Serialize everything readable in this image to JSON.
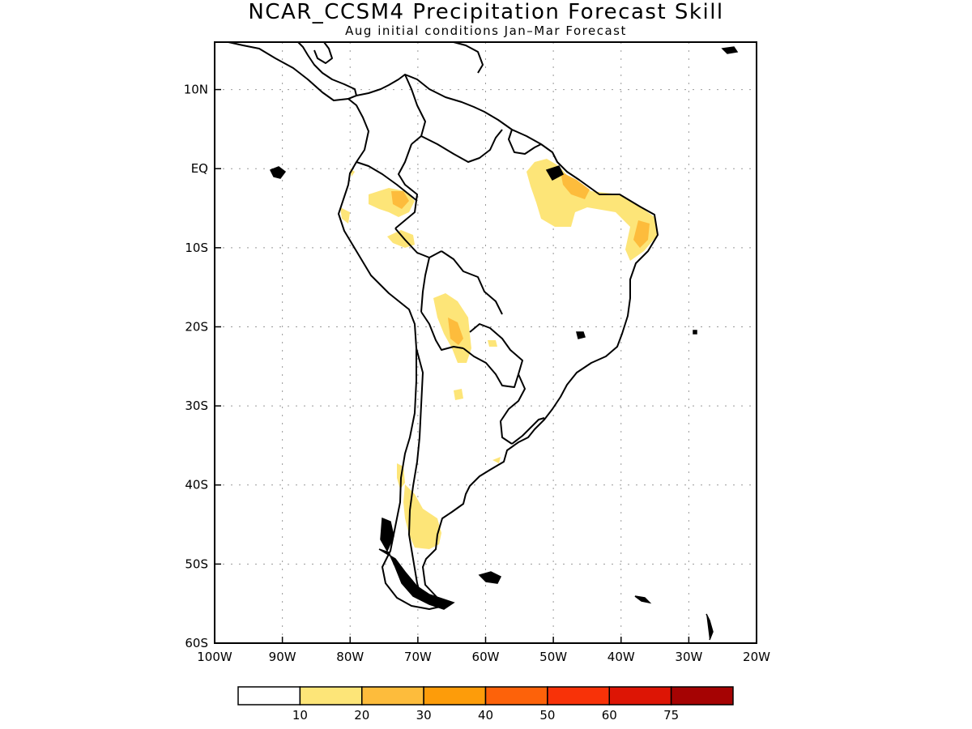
{
  "title": "NCAR_CCSM4 Precipitation Forecast Skill",
  "subtitle": "Aug initial conditions  Jan–Mar Forecast",
  "map": {
    "lon_range": [
      -100,
      -20
    ],
    "lat_range": [
      -60,
      16
    ],
    "lon_ticks": [
      -100,
      -90,
      -80,
      -70,
      -60,
      -50,
      -40,
      -30,
      -20
    ],
    "lon_labels": [
      "100W",
      "90W",
      "80W",
      "70W",
      "60W",
      "50W",
      "40W",
      "30W",
      "20W"
    ],
    "lat_ticks": [
      10,
      0,
      -10,
      -20,
      -30,
      -40,
      -50,
      -60
    ],
    "lat_labels": [
      "10N",
      "EQ",
      "10S",
      "20S",
      "30S",
      "40S",
      "50S",
      "60S"
    ],
    "grid": "dotted",
    "land_outline_color": "#000000"
  },
  "legend": {
    "colors": [
      "#ffffff",
      "#fde578",
      "#fdbc3c",
      "#fd9c0a",
      "#fd620a",
      "#f83208",
      "#dd1505",
      "#a50303"
    ],
    "labels": [
      "10",
      "20",
      "30",
      "40",
      "50",
      "60",
      "75"
    ]
  },
  "skill_regions": [
    {
      "level": "10-20",
      "color": "#fde578",
      "area": "northern Peru / southern Colombia"
    },
    {
      "level": "10-20",
      "color": "#fde578",
      "area": "northeastern Brazil"
    },
    {
      "level": "20-30",
      "color": "#fdbc3c",
      "area": "northeastern Brazil coast"
    },
    {
      "level": "10-20",
      "color": "#fde578",
      "area": "Bolivia / Paraguay"
    },
    {
      "level": "20-30",
      "color": "#fdbc3c",
      "area": "southeastern Bolivia"
    },
    {
      "level": "10-20",
      "color": "#fde578",
      "area": "Patagonia"
    }
  ]
}
